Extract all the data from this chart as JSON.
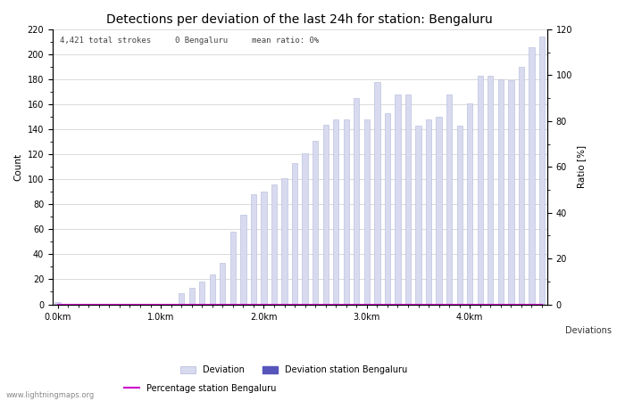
{
  "title": "Detections per deviation of the last 24h for station: Bengaluru",
  "annotation": "4,421 total strokes     0 Bengaluru     mean ratio: 0%",
  "ylabel_left": "Count",
  "ylabel_right": "Ratio [%]",
  "xlabel": "Deviations",
  "watermark": "www.lightningmaps.org",
  "ylim_left": [
    0,
    220
  ],
  "ylim_right": [
    0,
    120
  ],
  "yticks_left": [
    0,
    20,
    40,
    60,
    80,
    100,
    120,
    140,
    160,
    180,
    200,
    220
  ],
  "yticks_right": [
    0,
    20,
    40,
    60,
    80,
    100,
    120
  ],
  "bar_color_deviation": "#d8daef",
  "bar_color_station": "#5555bb",
  "bar_edge_color": "#b0b8d8",
  "line_color": "#cc00cc",
  "xtick_labels": [
    "0.0km",
    "1.0km",
    "2.0km",
    "3.0km",
    "4.0km"
  ],
  "xtick_positions": [
    0,
    10,
    20,
    30,
    40
  ],
  "bar_values": [
    2,
    0,
    0,
    0,
    0,
    0,
    0,
    0,
    0,
    0,
    0,
    0,
    9,
    13,
    18,
    24,
    33,
    58,
    72,
    88,
    90,
    96,
    101,
    113,
    121,
    131,
    144,
    148,
    148,
    165,
    148,
    178,
    153,
    168,
    168,
    143,
    148,
    150,
    168,
    143,
    161,
    183,
    183,
    180,
    179,
    190,
    206,
    214
  ],
  "station_bar_values": [
    0,
    0,
    0,
    0,
    0,
    0,
    0,
    0,
    0,
    0,
    0,
    0,
    0,
    0,
    0,
    0,
    0,
    0,
    0,
    0,
    0,
    0,
    0,
    0,
    0,
    0,
    0,
    0,
    0,
    0,
    0,
    0,
    0,
    0,
    0,
    0,
    0,
    0,
    0,
    0,
    0,
    0,
    0,
    0,
    0,
    0,
    0,
    0
  ],
  "percentage_values": [
    0,
    0,
    0,
    0,
    0,
    0,
    0,
    0,
    0,
    0,
    0,
    0,
    0,
    0,
    0,
    0,
    0,
    0,
    0,
    0,
    0,
    0,
    0,
    0,
    0,
    0,
    0,
    0,
    0,
    0,
    0,
    0,
    0,
    0,
    0,
    0,
    0,
    0,
    0,
    0,
    0,
    0,
    0,
    0,
    0,
    0,
    0,
    0
  ],
  "background_color": "#ffffff",
  "grid_color": "#cccccc",
  "title_fontsize": 10,
  "axis_fontsize": 7.5,
  "tick_fontsize": 7,
  "annotation_fontsize": 6.5,
  "legend_fontsize": 7,
  "bar_width": 0.55
}
